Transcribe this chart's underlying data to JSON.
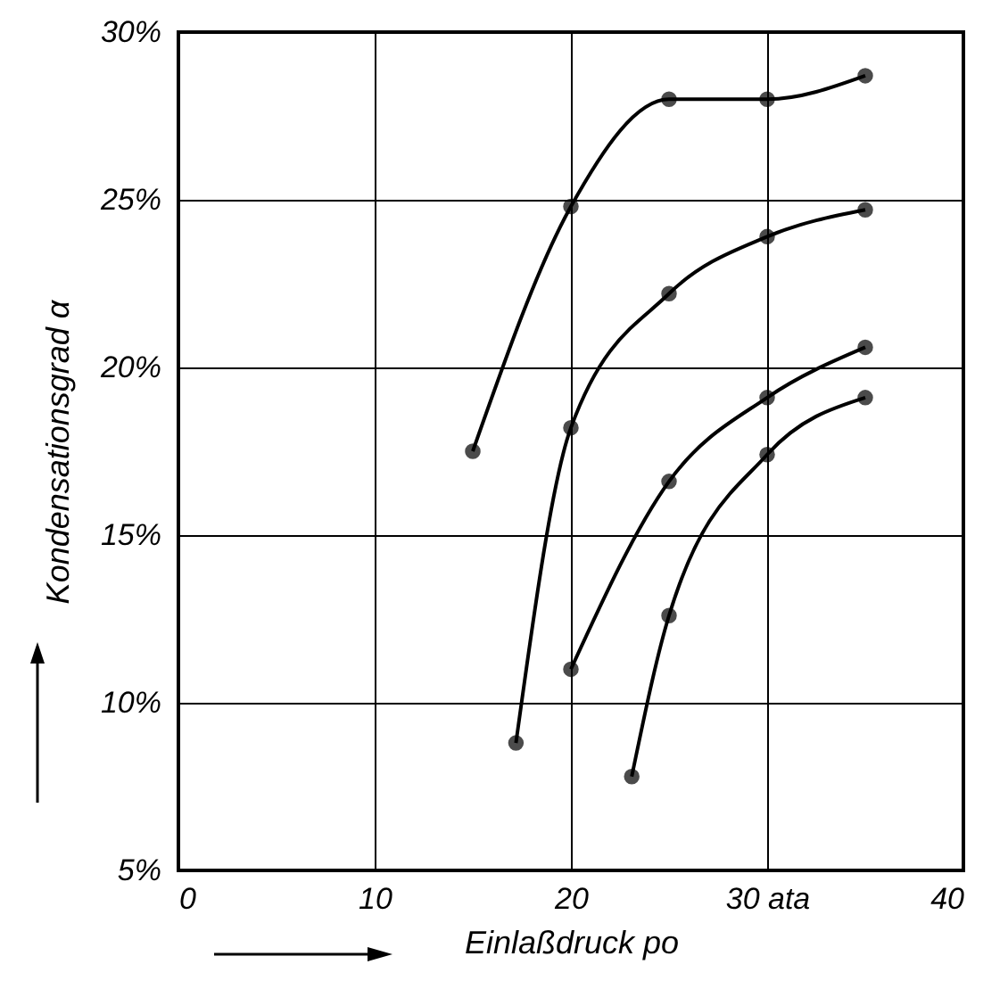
{
  "chart_data": {
    "type": "line",
    "xlabel": "Einlaßdruck po",
    "ylabel": "Kondensationsgrad α",
    "xlim": [
      0,
      40
    ],
    "xticks": [
      0,
      10,
      20,
      {
        "value": 30,
        "label": "30 ata"
      },
      40
    ],
    "ylim": [
      5,
      30
    ],
    "yticks": [
      {
        "value": 5,
        "label": "5%"
      },
      {
        "value": 10,
        "label": "10%"
      },
      {
        "value": 15,
        "label": "15%"
      },
      {
        "value": 20,
        "label": "20%"
      },
      {
        "value": 25,
        "label": "25%"
      },
      {
        "value": 30,
        "label": "30%"
      }
    ],
    "grid": true,
    "marker": "circle",
    "line_style": "solid",
    "series": [
      {
        "color": "#000000",
        "x": [
          15,
          20,
          25,
          30,
          35
        ],
        "values": [
          17.5,
          24.8,
          28,
          28,
          28.7
        ]
      },
      {
        "color": "#000000",
        "x": [
          17.2,
          20,
          25,
          30,
          35
        ],
        "values": [
          8.8,
          18.2,
          22.2,
          23.9,
          24.7
        ]
      },
      {
        "color": "#000000",
        "x": [
          20,
          25,
          30,
          35
        ],
        "values": [
          11,
          16.6,
          19.1,
          20.6
        ]
      },
      {
        "color": "#000000",
        "x": [
          23.1,
          25,
          30,
          35
        ],
        "values": [
          7.8,
          12.6,
          17.4,
          19.1
        ]
      }
    ]
  }
}
